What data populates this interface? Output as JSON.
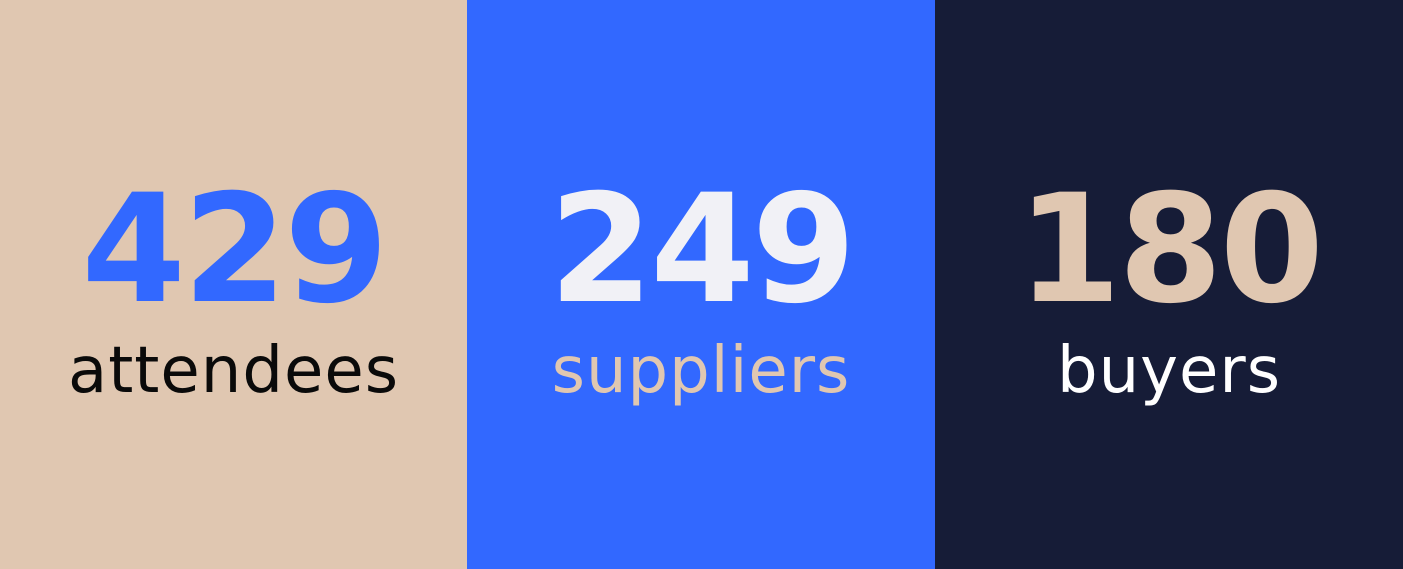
{
  "stats": [
    {
      "value": "429",
      "label": "attendees",
      "background_color": "#E0C7B1",
      "value_color": "#3268FF",
      "label_color": "#0A0A0A"
    },
    {
      "value": "249",
      "label": "suppliers",
      "background_color": "#3268FF",
      "value_color": "#F1F1F6",
      "label_color": "#E0C7B1"
    },
    {
      "value": "180",
      "label": "buyers",
      "background_color": "#161C37",
      "value_color": "#E0C7B1",
      "label_color": "#FFFFFF"
    }
  ]
}
